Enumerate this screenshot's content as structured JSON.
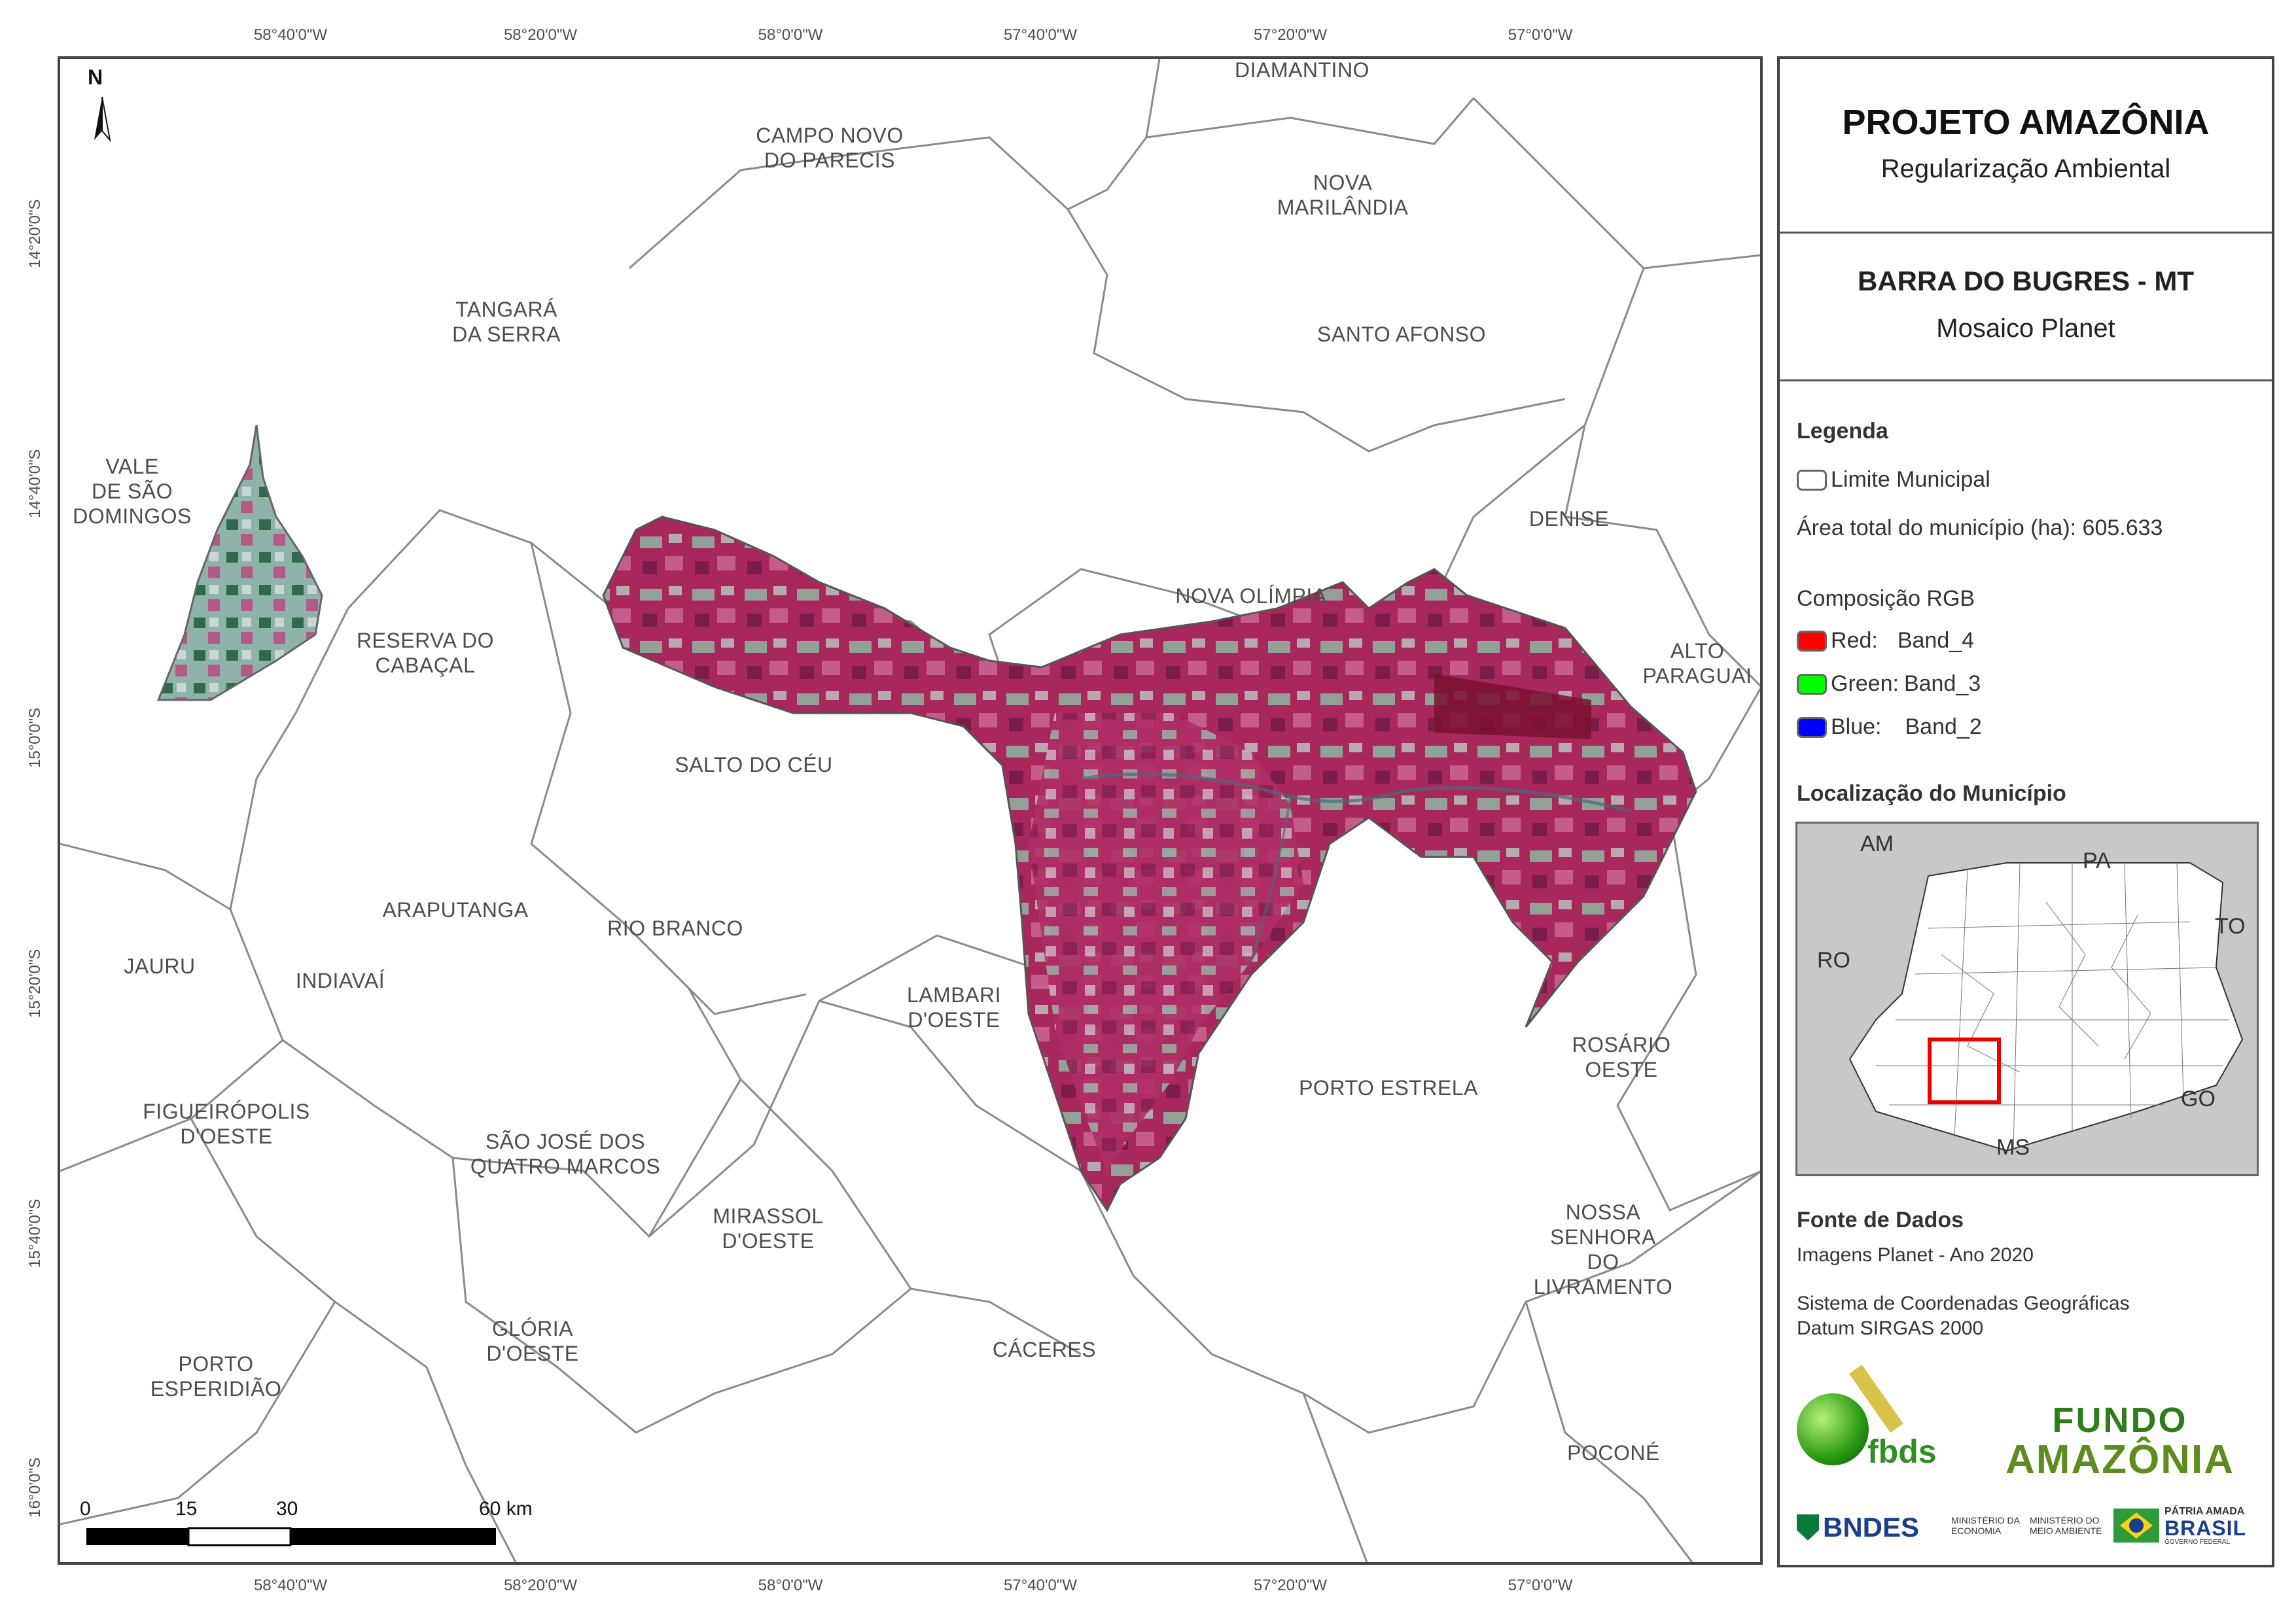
{
  "coords": {
    "top": [
      "58°40'0\"W",
      "58°20'0\"W",
      "58°0'0\"W",
      "57°40'0\"W",
      "57°20'0\"W",
      "57°0'0\"W"
    ],
    "bottom": [
      "58°40'0\"W",
      "58°20'0\"W",
      "58°0'0\"W",
      "57°40'0\"W",
      "57°20'0\"W",
      "57°0'0\"W"
    ],
    "left": [
      "14°20'0\"S",
      "14°40'0\"S",
      "15°0'0\"S",
      "15°20'0\"S",
      "15°40'0\"S",
      "16°0'0\"S"
    ]
  },
  "north_arrow": {
    "label": "N"
  },
  "scale_bar": {
    "labels": [
      "0",
      "15",
      "30",
      "60 km"
    ]
  },
  "places": {
    "diamantino": "DIAMANTINO",
    "campo_novo": "CAMPO NOVO\nDO PARECIS",
    "nova_marilandia": "NOVA\nMARILÂNDIA",
    "tangara": "TANGARÁ\nDA SERRA",
    "santo_afonso": "SANTO AFONSO",
    "vale_sao_domingos": "VALE\nDE SÃO\nDOMINGOS",
    "denise": "DENISE",
    "nova_olimpia": "NOVA OLÍMPIA",
    "reserva_cabacal": "RESERVA DO\nCABAÇAL",
    "alto_paraguai": "ALTO\nPARAGUAI",
    "salto_do_ceu": "SALTO DO CÉU",
    "araputanga": "ARAPUTANGA",
    "rio_branco": "RIO BRANCO",
    "jauru": "JAURU",
    "indiavai": "INDIAVAÍ",
    "lambari": "LAMBARI\nD'OESTE",
    "rosario_oeste": "ROSÁRIO OESTE",
    "porto_estrela": "PORTO ESTRELA",
    "figueiropolis": "FIGUEIRÓPOLIS\nD'OESTE",
    "sao_jose": "SÃO JOSÉ DOS\nQUATRO MARCOS",
    "mirassol": "MIRASSOL\nD'OESTE",
    "nossa_senhora": "NOSSA SENHORA\nDO LIVRAMENTO",
    "porto_esperidiao": "PORTO\nESPERIDIÃO",
    "gloria": "GLÓRIA\nD'OESTE",
    "caceres": "CÁCERES",
    "pocone": "POCONÉ"
  },
  "panel": {
    "title": "PROJETO AMAZÔNIA",
    "subtitle": "Regularização Ambiental",
    "municipality": "BARRA DO BUGRES - MT",
    "mosaic": "Mosaico Planet",
    "legend_title": "Legenda",
    "limit_label": "Limite Municipal",
    "area_label": "Área total do município (ha): 605.633",
    "rgb_title": "Composição RGB",
    "bands": [
      {
        "label": "Red:",
        "band": "Band_4",
        "color": "#ff0000"
      },
      {
        "label": "Green:",
        "band": "Band_3",
        "color": "#00ff00"
      },
      {
        "label": "Blue:",
        "band": "Band_2",
        "color": "#0000ff"
      }
    ],
    "location_title": "Localização do Município",
    "inset_labels": {
      "am": "AM",
      "pa": "PA",
      "ro": "RO",
      "to": "TO",
      "go": "GO",
      "ms": "MS"
    },
    "source_title": "Fonte de Dados",
    "source_text": "Imagens Planet - Ano 2020",
    "crs_line1": "Sistema de Coordenadas Geográficas",
    "crs_line2": "Datum SIRGAS 2000",
    "logos": {
      "fbds": "fbds",
      "fundo1": "FUNDO",
      "fundo2": "AMAZÔNIA",
      "bndes": "BNDES",
      "min_eco": "MINISTÉRIO DA\nECONOMIA",
      "min_amb": "MINISTÉRIO DO\nMEIO AMBIENTE",
      "patria1": "PÁTRIA AMADA",
      "patria2": "BRASIL",
      "patria3": "GOVERNO FEDERAL"
    }
  }
}
